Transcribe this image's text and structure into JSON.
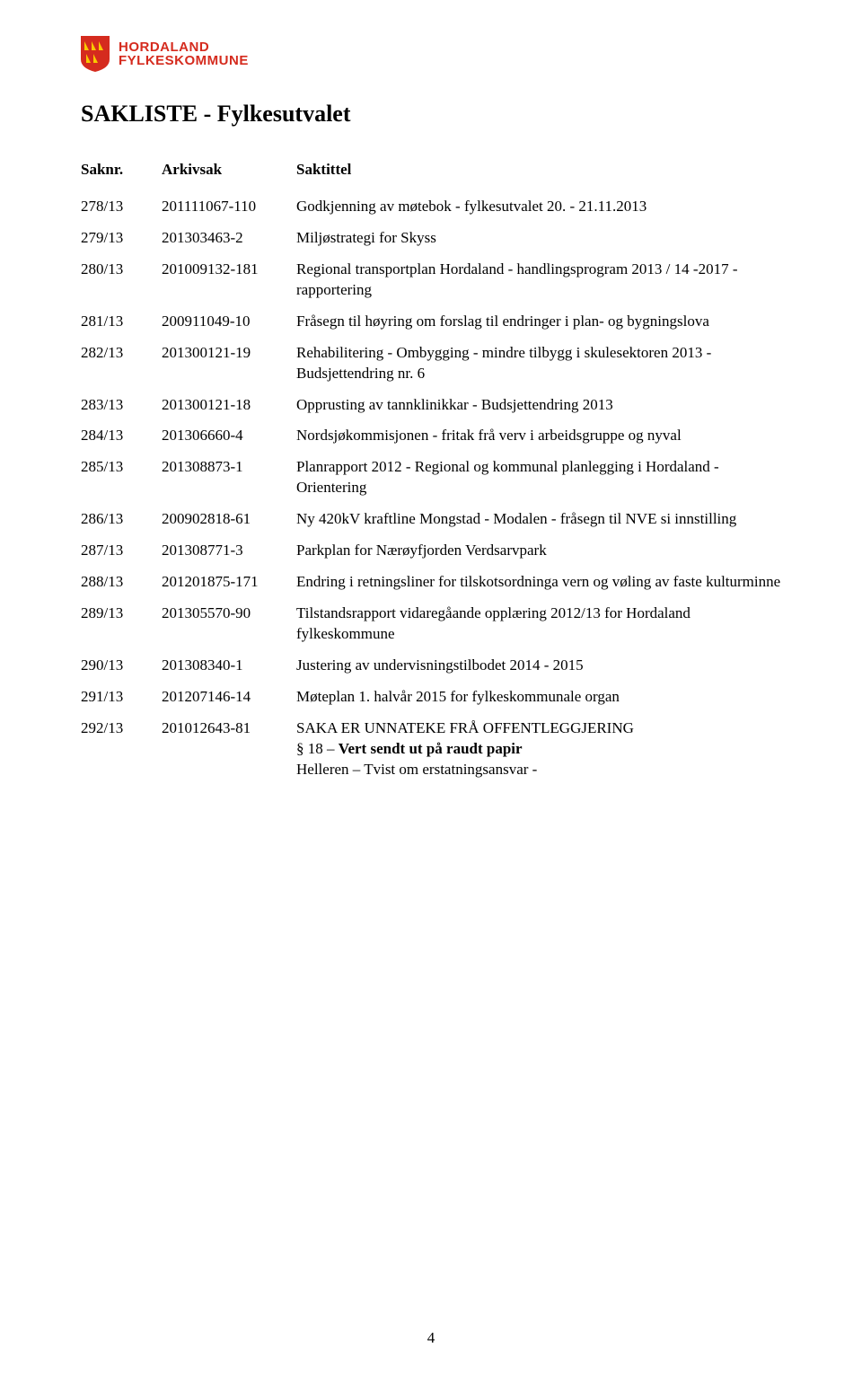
{
  "logo": {
    "line1": "HORDALAND",
    "line2": "FYLKESKOMMUNE",
    "shield_bg": "#d52b1e",
    "shield_fg": "#f9c900"
  },
  "title": "SAKLISTE - Fylkesutvalet",
  "headers": {
    "saknr": "Saknr.",
    "arkiv": "Arkivsak",
    "saktittel": "Saktittel"
  },
  "rows": [
    {
      "saknr": "278/13",
      "arkiv": "201111067-110",
      "title": "Godkjenning av møtebok - fylkesutvalet 20. - 21.11.2013"
    },
    {
      "saknr": "279/13",
      "arkiv": "201303463-2",
      "title": "Miljøstrategi for Skyss"
    },
    {
      "saknr": "280/13",
      "arkiv": "201009132-181",
      "title": "Regional transportplan Hordaland - handlingsprogram 2013 / 14 -2017 - rapportering"
    },
    {
      "saknr": "281/13",
      "arkiv": "200911049-10",
      "title": "Fråsegn til høyring om forslag til endringer i plan- og bygningslova"
    },
    {
      "saknr": "282/13",
      "arkiv": "201300121-19",
      "title": "Rehabilitering - Ombygging - mindre tilbygg i skulesektoren 2013 - Budsjettendring nr. 6"
    },
    {
      "saknr": "283/13",
      "arkiv": "201300121-18",
      "title": "Opprusting av tannklinikkar - Budsjettendring 2013"
    },
    {
      "saknr": "284/13",
      "arkiv": "201306660-4",
      "title": "Nordsjøkommisjonen - fritak frå verv i arbeidsgruppe og nyval"
    },
    {
      "saknr": "285/13",
      "arkiv": "201308873-1",
      "title": "Planrapport 2012 - Regional og kommunal planlegging i Hordaland - Orientering"
    },
    {
      "saknr": "286/13",
      "arkiv": "200902818-61",
      "title": "Ny 420kV kraftline Mongstad - Modalen - fråsegn til NVE si innstilling"
    },
    {
      "saknr": "287/13",
      "arkiv": "201308771-3",
      "title": "Parkplan for Nærøyfjorden Verdsarvpark"
    },
    {
      "saknr": "288/13",
      "arkiv": "201201875-171",
      "title": "Endring i retningsliner for tilskotsordninga vern og vøling av faste kulturminne"
    },
    {
      "saknr": "289/13",
      "arkiv": "201305570-90",
      "title": "Tilstandsrapport vidaregåande opplæring 2012/13 for Hordaland fylkeskommune"
    },
    {
      "saknr": "290/13",
      "arkiv": "201308340-1",
      "title": "Justering av undervisningstilbodet 2014 - 2015"
    },
    {
      "saknr": "291/13",
      "arkiv": "201207146-14",
      "title": "Møteplan 1. halvår 2015 for fylkeskommunale organ"
    }
  ],
  "special_row": {
    "saknr": "292/13",
    "arkiv": "201012643-81",
    "line1": "SAKA ER UNNATEKE FRÅ OFFENTLEGGJERING",
    "line2_prefix": "§ 18 – ",
    "line2_bold": "Vert sendt ut på raudt papir",
    "line3": "Helleren – Tvist om erstatningsansvar -"
  },
  "page_number": "4",
  "colors": {
    "text": "#000000",
    "bg": "#ffffff"
  }
}
